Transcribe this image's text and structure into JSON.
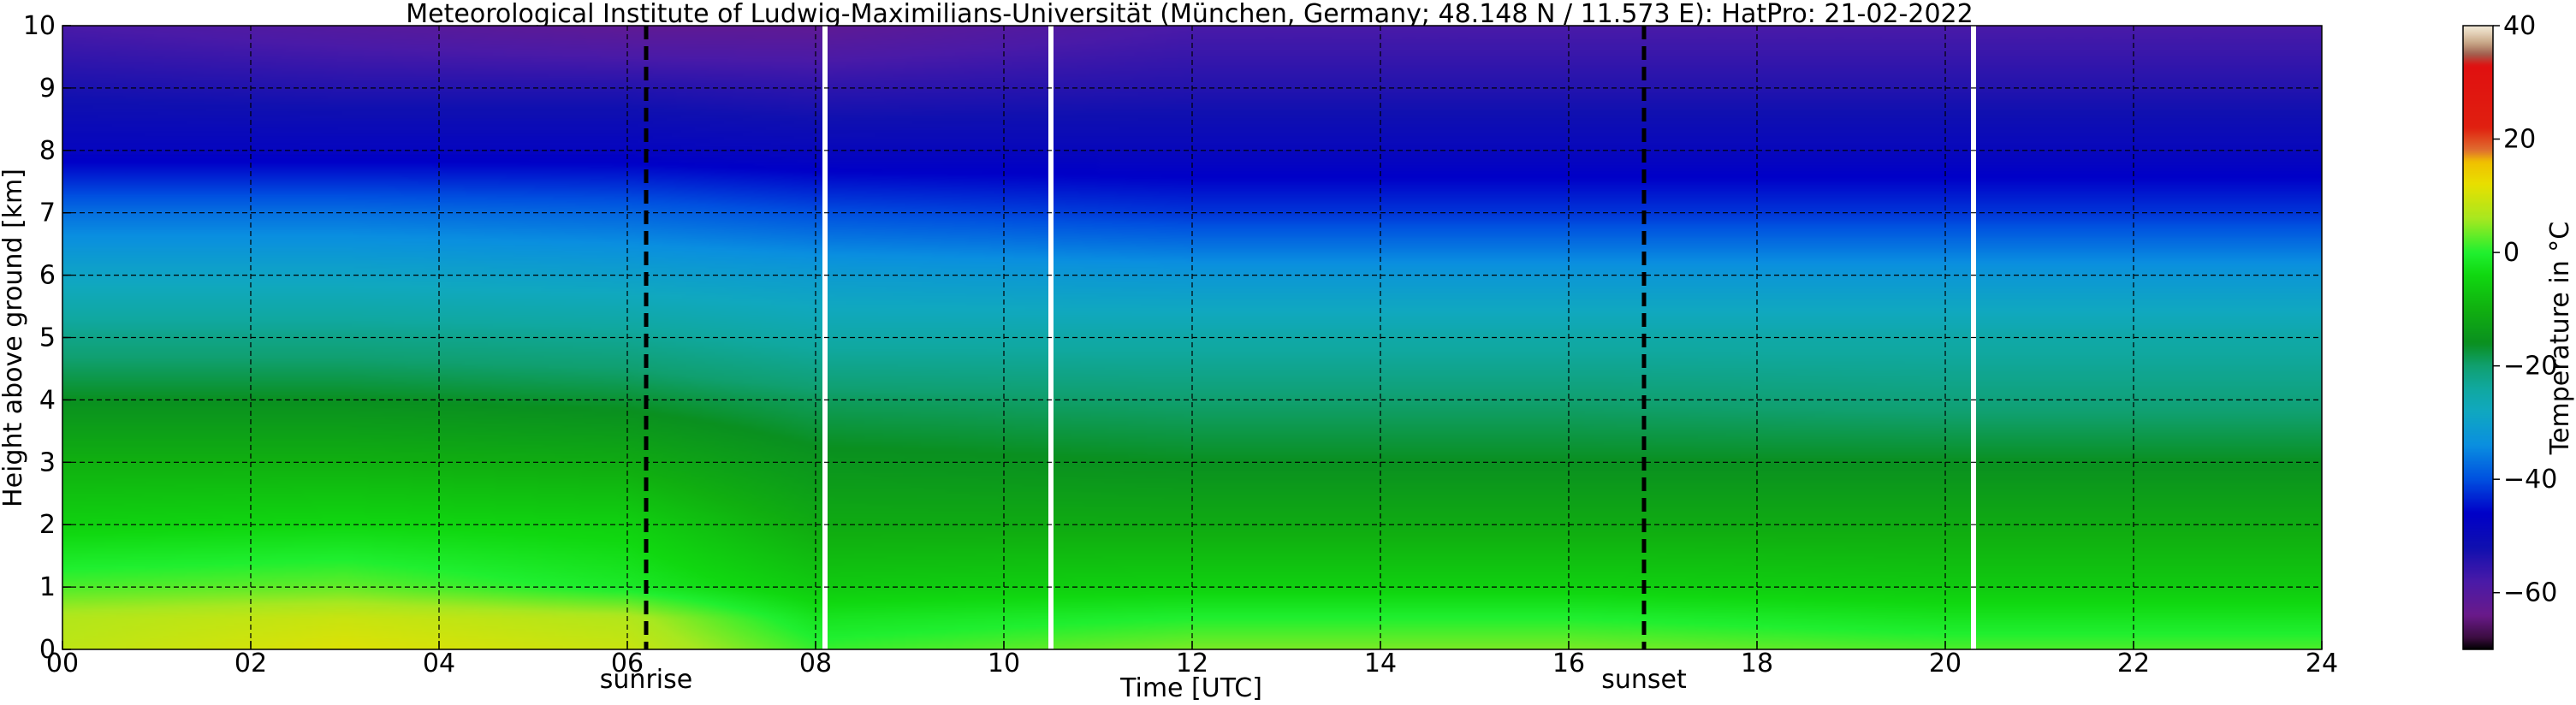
{
  "chart_data": {
    "type": "heatmap",
    "title": "Meteorological Institute of Ludwig-Maximilians-Universität (München, Germany; 48.148 N / 11.573 E):    HatPro: 21-02-2022",
    "xlabel": "Time [UTC]",
    "ylabel": "Height above ground [km]",
    "colorbar_label": "Temperature in °C",
    "xlim": [
      0,
      24
    ],
    "ylim": [
      0,
      10
    ],
    "clim": [
      -70,
      40
    ],
    "x_ticks": [
      0,
      2,
      4,
      6,
      8,
      10,
      12,
      14,
      16,
      18,
      20,
      22,
      24
    ],
    "x_tick_labels": [
      "00",
      "02",
      "04",
      "06",
      "08",
      "10",
      "12",
      "14",
      "16",
      "18",
      "20",
      "22",
      "24"
    ],
    "y_ticks": [
      0,
      1,
      2,
      3,
      4,
      5,
      6,
      7,
      8,
      9,
      10
    ],
    "y_tick_labels": [
      "0",
      "1",
      "2",
      "3",
      "4",
      "5",
      "6",
      "7",
      "8",
      "9",
      "10"
    ],
    "colorbar_ticks": [
      40,
      20,
      0,
      -20,
      -40,
      -60
    ],
    "colorbar_tick_labels": [
      "40",
      "20",
      "0",
      "−20",
      "−40",
      "−60"
    ],
    "grid": true,
    "colormap": [
      {
        "value": -70,
        "color": "#000000"
      },
      {
        "value": -68,
        "color": "#3a0d3f"
      },
      {
        "value": -64,
        "color": "#6a1a8a"
      },
      {
        "value": -58,
        "color": "#4a1aa8"
      },
      {
        "value": -52,
        "color": "#1010b0"
      },
      {
        "value": -46,
        "color": "#0000c8"
      },
      {
        "value": -40,
        "color": "#0050e0"
      },
      {
        "value": -34,
        "color": "#0a8fe0"
      },
      {
        "value": -28,
        "color": "#10a8c0"
      },
      {
        "value": -24,
        "color": "#10a8a0"
      },
      {
        "value": -20,
        "color": "#10a070"
      },
      {
        "value": -16,
        "color": "#0a9020"
      },
      {
        "value": -10,
        "color": "#10b010"
      },
      {
        "value": -4,
        "color": "#10d810"
      },
      {
        "value": 0,
        "color": "#20f030"
      },
      {
        "value": 6,
        "color": "#a8e820"
      },
      {
        "value": 12,
        "color": "#e8e000"
      },
      {
        "value": 16,
        "color": "#f0c000"
      },
      {
        "value": 18,
        "color": "#e07030"
      },
      {
        "value": 22,
        "color": "#e02010"
      },
      {
        "value": 33,
        "color": "#e01010"
      },
      {
        "value": 35,
        "color": "#a06050"
      },
      {
        "value": 37,
        "color": "#c8a888"
      },
      {
        "value": 39,
        "color": "#e8d8c0"
      },
      {
        "value": 40,
        "color": "#f0e8d8"
      }
    ],
    "temperature_profiles": [
      {
        "time": 0,
        "heights": [
          0,
          0.5,
          1,
          2,
          3,
          4,
          5,
          6,
          7,
          8,
          9,
          10
        ],
        "temperatures": [
          8,
          7,
          2,
          -5,
          -10,
          -16,
          -22,
          -29,
          -37,
          -48,
          -53,
          -58
        ]
      },
      {
        "time": 3,
        "heights": [
          0,
          0.5,
          1,
          2,
          3,
          4,
          5,
          6,
          7,
          8,
          9,
          10
        ],
        "temperatures": [
          11,
          9,
          3,
          -4,
          -10,
          -16,
          -22,
          -29,
          -37,
          -48,
          -54,
          -60
        ]
      },
      {
        "time": 6,
        "heights": [
          0,
          0.5,
          1,
          2,
          3,
          4,
          5,
          6,
          7,
          8,
          9,
          10
        ],
        "temperatures": [
          9,
          7,
          -1,
          -5,
          -11,
          -17,
          -23,
          -30,
          -38,
          -48,
          -54,
          -62
        ]
      },
      {
        "time": 8,
        "heights": [
          0,
          0.5,
          1,
          2,
          3,
          4,
          5,
          6,
          7,
          8,
          9,
          10
        ],
        "temperatures": [
          1,
          -2,
          -6,
          -11,
          -15,
          -19,
          -25,
          -31,
          -40,
          -49,
          -55,
          -62
        ]
      },
      {
        "time": 12,
        "heights": [
          0,
          0.5,
          1,
          2,
          3,
          4,
          5,
          6,
          7,
          8,
          9,
          10
        ],
        "temperatures": [
          4,
          0,
          -5,
          -11,
          -16,
          -20,
          -25,
          -32,
          -42,
          -49,
          -54,
          -58
        ]
      },
      {
        "time": 16,
        "heights": [
          0,
          0.5,
          1,
          2,
          3,
          4,
          5,
          6,
          7,
          8,
          9,
          10
        ],
        "temperatures": [
          4,
          0,
          -5,
          -11,
          -16,
          -20,
          -25,
          -32,
          -42,
          -49,
          -54,
          -58
        ]
      },
      {
        "time": 20,
        "heights": [
          0,
          0.5,
          1,
          2,
          3,
          4,
          5,
          6,
          7,
          8,
          9,
          10
        ],
        "temperatures": [
          2,
          -2,
          -6,
          -11,
          -16,
          -21,
          -25,
          -32,
          -42,
          -49,
          -54,
          -58
        ]
      },
      {
        "time": 24,
        "heights": [
          0,
          0.5,
          1,
          2,
          3,
          4,
          5,
          6,
          7,
          8,
          9,
          10
        ],
        "temperatures": [
          2,
          -2,
          -6,
          -11,
          -16,
          -21,
          -25,
          -32,
          -42,
          -49,
          -54,
          -58
        ]
      }
    ],
    "data_gaps": [
      8.1,
      10.5,
      20.3
    ],
    "annotations": [
      {
        "label": "sunrise",
        "time": 6.2,
        "style": "dashed"
      },
      {
        "label": "sunset",
        "time": 16.8,
        "style": "dashed"
      }
    ]
  }
}
